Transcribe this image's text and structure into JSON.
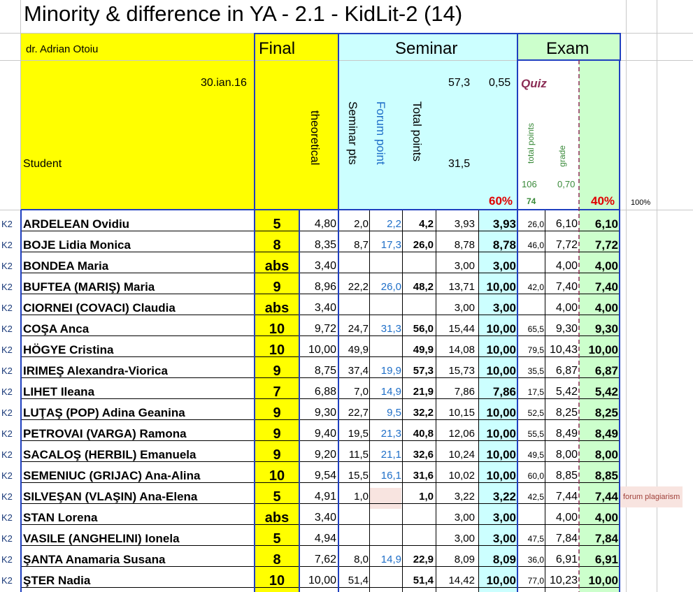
{
  "title": "Minority & difference in YA - 2.1 - KidLit-2 (14)",
  "teacher": "dr. Adrian Otoiu",
  "date": "30.ian.16",
  "student_label": "Student",
  "headers": {
    "final": "Final",
    "seminar": "Seminar",
    "exam": "Exam",
    "theoretical": "theoretical",
    "seminar_pts": "Seminar pts",
    "forum_point": "Forum point",
    "total_points": "Total points",
    "quiz": "Quiz",
    "exam_total_points": "total points",
    "exam_grade": "grade",
    "sem_max": "57,3",
    "sem_ratio": "0,55",
    "sem_ref": "31,5",
    "exam_max": "106",
    "exam_ratio": "0,70",
    "exam_ref": "74",
    "sem_weight": "60%",
    "exam_weight": "40%",
    "total_weight": "100%"
  },
  "colors": {
    "yellow": "#ffff00",
    "cyan": "#ccffff",
    "green": "#ccffcc",
    "border_blue": "#1f3fbf",
    "weight_red": "#e00000",
    "forum_blue": "#1f6fc8",
    "quiz_purple": "#8b2d55"
  },
  "rows": [
    {
      "group": "K2",
      "name": "ARDELEAN Ovidiu",
      "final": "5",
      "theo": "4,80",
      "sem": "2,0",
      "forum": "2,2",
      "tot": "4,2",
      "semtot": "3,93",
      "semgr": "3,93",
      "exp": "26,0",
      "exg": "6,10",
      "fin": "6,10",
      "note": ""
    },
    {
      "group": "K2",
      "name": "BOJE Lidia Monica",
      "final": "8",
      "theo": "8,35",
      "sem": "8,7",
      "forum": "17,3",
      "tot": "26,0",
      "semtot": "8,78",
      "semgr": "8,78",
      "exp": "46,0",
      "exg": "7,72",
      "fin": "7,72",
      "note": ""
    },
    {
      "group": "K2",
      "name": "BONDEA Maria",
      "final": "abs",
      "theo": "3,40",
      "sem": "",
      "forum": "",
      "tot": "",
      "semtot": "3,00",
      "semgr": "3,00",
      "exp": "",
      "exg": "4,00",
      "fin": "4,00",
      "note": ""
    },
    {
      "group": "K2",
      "name": "BUFTEA (MARIŞ) Maria",
      "final": "9",
      "theo": "8,96",
      "sem": "22,2",
      "forum": "26,0",
      "tot": "48,2",
      "semtot": "13,71",
      "semgr": "10,00",
      "exp": "42,0",
      "exg": "7,40",
      "fin": "7,40",
      "note": ""
    },
    {
      "group": "K2",
      "name": "CIORNEI (COVACI) Claudia",
      "final": "abs",
      "theo": "3,40",
      "sem": "",
      "forum": "",
      "tot": "",
      "semtot": "3,00",
      "semgr": "3,00",
      "exp": "",
      "exg": "4,00",
      "fin": "4,00",
      "note": ""
    },
    {
      "group": "K2",
      "name": "COŞA Anca",
      "final": "10",
      "theo": "9,72",
      "sem": "24,7",
      "forum": "31,3",
      "tot": "56,0",
      "semtot": "15,44",
      "semgr": "10,00",
      "exp": "65,5",
      "exg": "9,30",
      "fin": "9,30",
      "note": ""
    },
    {
      "group": "K2",
      "name": "HÖGYE Cristina",
      "final": "10",
      "theo": "10,00",
      "sem": "49,9",
      "forum": "",
      "tot": "49,9",
      "semtot": "14,08",
      "semgr": "10,00",
      "exp": "79,5",
      "exg": "10,43",
      "fin": "10,00",
      "note": ""
    },
    {
      "group": "K2",
      "name": "IRIMEŞ Alexandra-Viorica",
      "final": "9",
      "theo": "8,75",
      "sem": "37,4",
      "forum": "19,9",
      "tot": "57,3",
      "semtot": "15,73",
      "semgr": "10,00",
      "exp": "35,5",
      "exg": "6,87",
      "fin": "6,87",
      "note": ""
    },
    {
      "group": "K2",
      "name": "LIHET Ileana",
      "final": "7",
      "theo": "6,88",
      "sem": "7,0",
      "forum": "14,9",
      "tot": "21,9",
      "semtot": "7,86",
      "semgr": "7,86",
      "exp": "17,5",
      "exg": "5,42",
      "fin": "5,42",
      "note": ""
    },
    {
      "group": "K2",
      "name": "LUŢAŞ (POP) Adina Geanina",
      "final": "9",
      "theo": "9,30",
      "sem": "22,7",
      "forum": "9,5",
      "tot": "32,2",
      "semtot": "10,15",
      "semgr": "10,00",
      "exp": "52,5",
      "exg": "8,25",
      "fin": "8,25",
      "note": ""
    },
    {
      "group": "K2",
      "name": "PETROVAI (VARGA) Ramona",
      "final": "9",
      "theo": "9,40",
      "sem": "19,5",
      "forum": "21,3",
      "tot": "40,8",
      "semtot": "12,06",
      "semgr": "10,00",
      "exp": "55,5",
      "exg": "8,49",
      "fin": "8,49",
      "note": ""
    },
    {
      "group": "K2",
      "name": "SACALOŞ (HERBIL) Emanuela",
      "final": "9",
      "theo": "9,20",
      "sem": "11,5",
      "forum": "21,1",
      "tot": "32,6",
      "semtot": "10,24",
      "semgr": "10,00",
      "exp": "49,5",
      "exg": "8,00",
      "fin": "8,00",
      "note": ""
    },
    {
      "group": "K2",
      "name": "SEMENIUC (GRIJAC) Ana-Alina",
      "final": "10",
      "theo": "9,54",
      "sem": "15,5",
      "forum": "16,1",
      "tot": "31,6",
      "semtot": "10,02",
      "semgr": "10,00",
      "exp": "60,0",
      "exg": "8,85",
      "fin": "8,85",
      "note": ""
    },
    {
      "group": "K2",
      "name": "SILVEŞAN (VLAŞIN) Ana-Elena",
      "final": "5",
      "theo": "4,91",
      "sem": "1,0",
      "forum": "",
      "tot": "1,0",
      "semtot": "3,22",
      "semgr": "3,22",
      "exp": "42,5",
      "exg": "7,44",
      "fin": "7,44",
      "note": "forum plagiarism"
    },
    {
      "group": "K2",
      "name": "STAN Lorena",
      "final": "abs",
      "theo": "3,40",
      "sem": "",
      "forum": "",
      "tot": "",
      "semtot": "3,00",
      "semgr": "3,00",
      "exp": "",
      "exg": "4,00",
      "fin": "4,00",
      "note": ""
    },
    {
      "group": "K2",
      "name": "VASILE (ANGHELINI) Ionela",
      "final": "5",
      "theo": "4,94",
      "sem": "",
      "forum": "",
      "tot": "",
      "semtot": "3,00",
      "semgr": "3,00",
      "exp": "47,5",
      "exg": "7,84",
      "fin": "7,84",
      "note": ""
    },
    {
      "group": "K2",
      "name": "ŞANTA Anamaria Susana",
      "final": "8",
      "theo": "7,62",
      "sem": "8,0",
      "forum": "14,9",
      "tot": "22,9",
      "semtot": "8,09",
      "semgr": "8,09",
      "exp": "36,0",
      "exg": "6,91",
      "fin": "6,91",
      "note": ""
    },
    {
      "group": "K2",
      "name": "ŞTER Nadia",
      "final": "10",
      "theo": "10,00",
      "sem": "51,4",
      "forum": "",
      "tot": "51,4",
      "semtot": "14,42",
      "semgr": "10,00",
      "exp": "77,0",
      "exg": "10,23",
      "fin": "10,00",
      "note": ""
    }
  ]
}
